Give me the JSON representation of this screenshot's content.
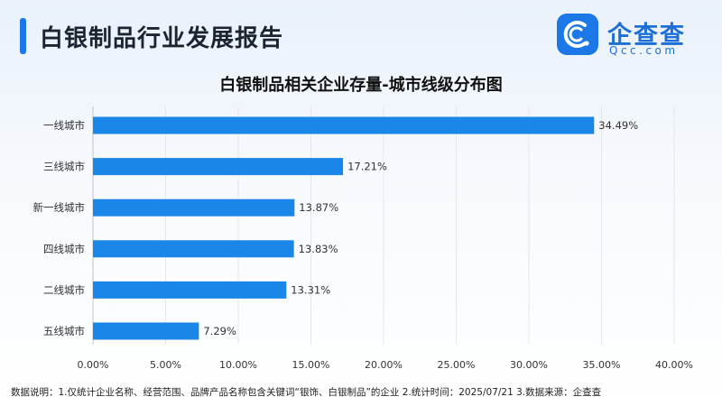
{
  "header": {
    "report_title": "白银制品行业发展报告"
  },
  "logo": {
    "icon": "qcc-logo-icon",
    "name": "企查查",
    "sub": "Qcc.com"
  },
  "colors": {
    "accent": "#1b78e6",
    "bar": "#1a86e8"
  },
  "chart_data": {
    "type": "bar",
    "orientation": "horizontal",
    "title": "白银制品相关企业存量-城市线级分布图",
    "categories": [
      "一线城市",
      "三线城市",
      "新一线城市",
      "四线城市",
      "二线城市",
      "五线城市"
    ],
    "values": [
      34.49,
      17.21,
      13.87,
      13.83,
      13.31,
      7.29
    ],
    "value_labels": [
      "34.49%",
      "17.21%",
      "13.87%",
      "13.83%",
      "13.31%",
      "7.29%"
    ],
    "xlim": [
      0,
      40
    ],
    "ticks": [
      0,
      5,
      10,
      15,
      20,
      25,
      30,
      35,
      40
    ],
    "tick_labels": [
      "0.00%",
      "5.00%",
      "10.00%",
      "15.00%",
      "20.00%",
      "25.00%",
      "30.00%",
      "35.00%",
      "40.00%"
    ],
    "grid": "vertical"
  },
  "footnote": "数据说明：1.仅统计企业名称、经营范围、品牌产品名称包含关键词“银饰、白银制品”的企业  2.统计时间：2025/07/21  3.数据来源：企查查"
}
